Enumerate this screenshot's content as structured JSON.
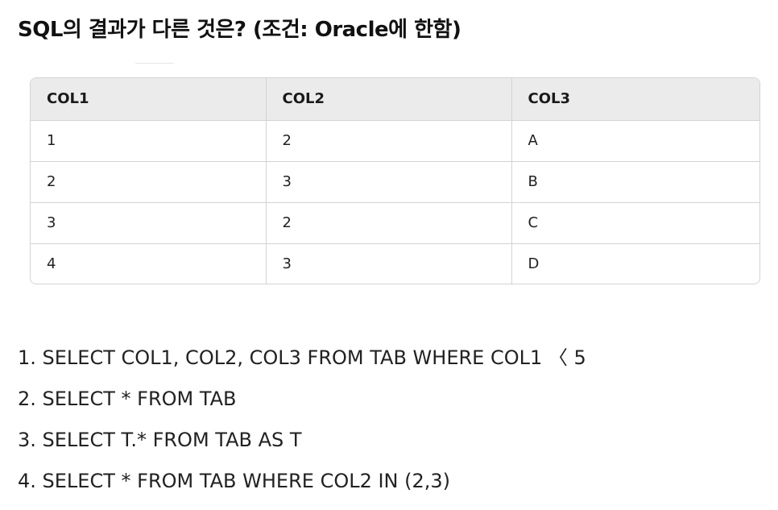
{
  "question": {
    "title": "SQL의 결과가 다른 것은? (조건: Oracle에 한함)"
  },
  "table": {
    "headers": [
      "COL1",
      "COL2",
      "COL3"
    ],
    "rows": [
      [
        "1",
        "2",
        "A"
      ],
      [
        "2",
        "3",
        "B"
      ],
      [
        "3",
        "2",
        "C"
      ],
      [
        "4",
        "3",
        "D"
      ]
    ]
  },
  "options": [
    "1. SELECT COL1, COL2, COL3 FROM TAB WHERE COL1 〈 5",
    "2. SELECT * FROM TAB",
    "3. SELECT T.* FROM TAB AS T",
    "4. SELECT * FROM TAB WHERE COL2 IN (2,3)"
  ]
}
